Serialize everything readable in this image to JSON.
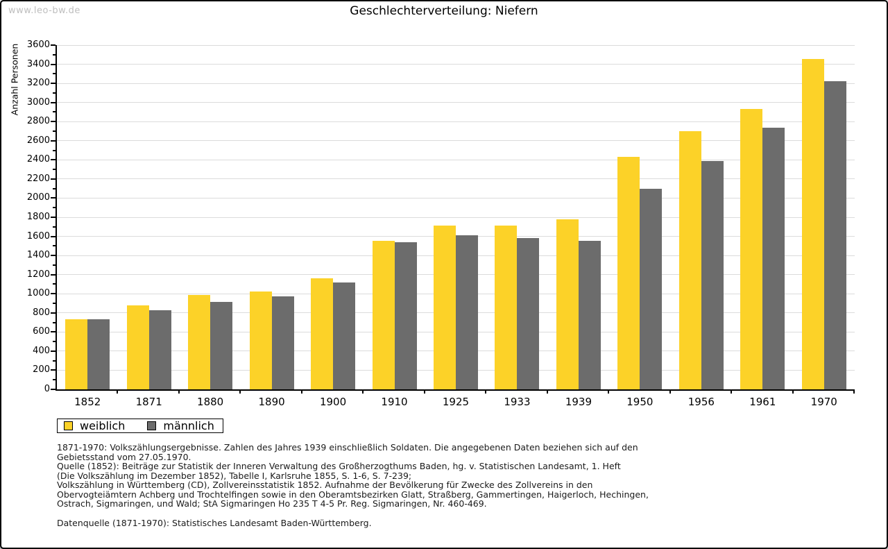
{
  "page": {
    "watermark": "www.leo-bw.de",
    "title": "Geschlechterverteilung: Niefern"
  },
  "chart_data": {
    "type": "bar",
    "title": "Geschlechterverteilung: Niefern",
    "xlabel": "",
    "ylabel": "Anzahl Personen",
    "ylim": [
      0,
      3600
    ],
    "ytick_step": 200,
    "ytick_minor_step": 100,
    "grid": true,
    "legend_position": "bottom-left",
    "categories": [
      "1852",
      "1871",
      "1880",
      "1890",
      "1900",
      "1910",
      "1925",
      "1933",
      "1939",
      "1950",
      "1956",
      "1961",
      "1970"
    ],
    "series": [
      {
        "name": "weiblich",
        "color": "#FCD228",
        "values": [
          730,
          880,
          990,
          1020,
          1160,
          1550,
          1715,
          1715,
          1775,
          2430,
          2700,
          2935,
          3455
        ]
      },
      {
        "name": "männlich",
        "color": "#6C6C6C",
        "values": [
          730,
          830,
          915,
          970,
          1120,
          1540,
          1610,
          1585,
          1550,
          2100,
          2390,
          2735,
          3225
        ]
      }
    ]
  },
  "legend": {
    "items": [
      {
        "label": "weiblich",
        "color": "#FCD228"
      },
      {
        "label": "männlich",
        "color": "#6C6C6C"
      }
    ]
  },
  "footnotes": {
    "lines": [
      "1871-1970: Volkszählungsergebnisse. Zahlen des Jahres 1939 einschließlich Soldaten. Die angegebenen Daten beziehen sich auf den",
      "Gebietsstand vom 27.05.1970.",
      "Quelle (1852): Beiträge zur Statistik der Inneren Verwaltung des Großherzogthums Baden, hg. v. Statistischen Landesamt, 1. Heft",
      "(Die Volkszählung im Dezember 1852), Tabelle I, Karlsruhe 1855, S. 1-6, S. 7-239;",
      "Volkszählung in Württemberg (CD), Zollvereinsstatistik 1852. Aufnahme der Bevölkerung für Zwecke des Zollvereins in den",
      "Obervogteiämtern Achberg und Trochtelfingen sowie in den Oberamtsbezirken Glatt, Straßberg, Gammertingen, Haigerloch, Hechingen,",
      "Ostrach, Sigmaringen, und Wald; StA Sigmaringen Ho 235 T 4-5 Pr. Reg. Sigmaringen, Nr. 460-469."
    ],
    "datasource": "Datenquelle (1871-1970): Statistisches Landesamt Baden-Württemberg."
  }
}
